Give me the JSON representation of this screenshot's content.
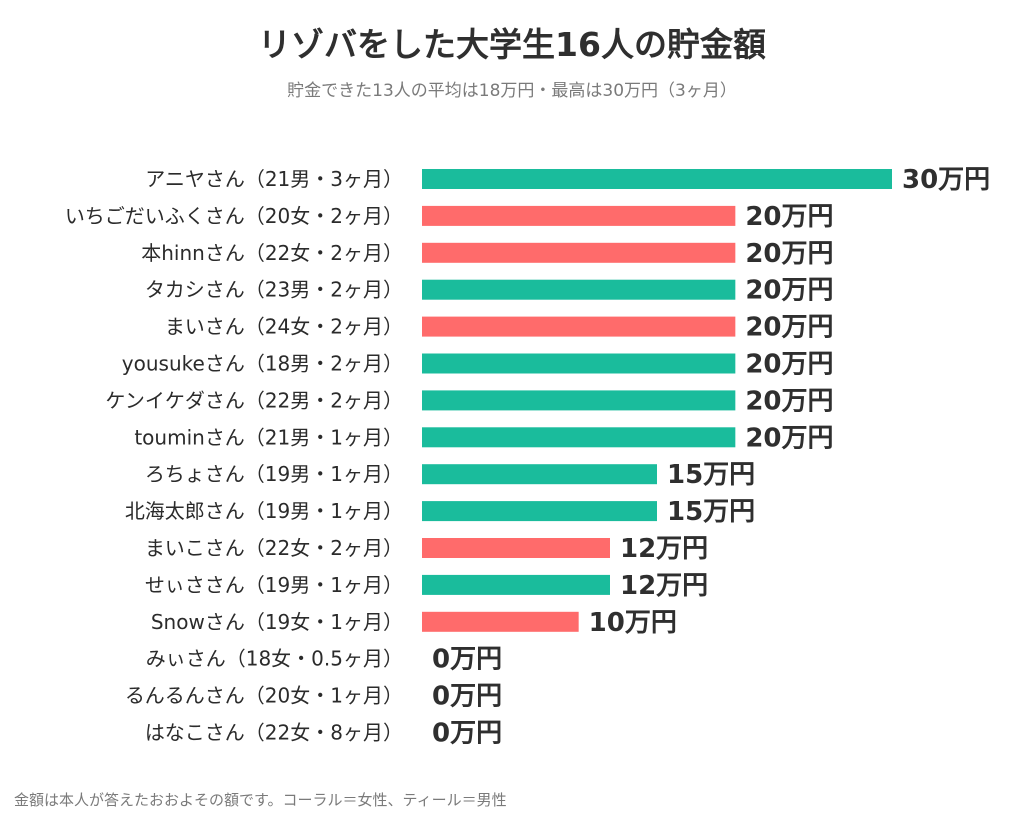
{
  "title": "リゾバをした大学生16人の貯金額",
  "subtitle": "貯金できた13人の平均は18万円・最高は30万円（3ヶ月）",
  "note": "金額は本人が答えたおおよその額です。コーラル＝女性、ティール＝男性",
  "colors": {
    "female": "#ff6b6b",
    "male": "#1abc9c",
    "text": "#2b2b2b"
  },
  "chart_data": {
    "type": "bar",
    "orientation": "horizontal",
    "unit": "万円",
    "xlim": [
      0,
      30
    ],
    "grid": false,
    "categories": [
      "アニヤさん（21男・3ヶ月）",
      "いちごだいふくさん（20女・2ヶ月）",
      "本hinnさん（22女・2ヶ月）",
      "タカシさん（23男・2ヶ月）",
      "まいさん（24女・2ヶ月）",
      "yousukeさん（18男・2ヶ月）",
      "ケンイケダさん（22男・2ヶ月）",
      "touminさん（21男・1ヶ月）",
      "ろちょさん（19男・1ヶ月）",
      "北海太郎さん（19男・1ヶ月）",
      "まいこさん（22女・2ヶ月）",
      "せぃささん（19男・1ヶ月）",
      "Snowさん（19女・1ヶ月）",
      "みぃさん（18女・0.5ヶ月）",
      "るんるんさん（20女・1ヶ月）",
      "はなこさん（22女・8ヶ月）"
    ],
    "values": [
      30,
      20,
      20,
      20,
      20,
      20,
      20,
      20,
      15,
      15,
      12,
      12,
      10,
      0,
      0,
      0
    ],
    "value_labels": [
      "30万円",
      "20万円",
      "20万円",
      "20万円",
      "20万円",
      "20万円",
      "20万円",
      "20万円",
      "15万円",
      "15万円",
      "12万円",
      "12万円",
      "10万円",
      "0万円",
      "0万円",
      "0万円"
    ],
    "gender": [
      "male",
      "female",
      "female",
      "male",
      "female",
      "male",
      "male",
      "male",
      "male",
      "male",
      "female",
      "male",
      "female",
      "female",
      "female",
      "female"
    ]
  }
}
